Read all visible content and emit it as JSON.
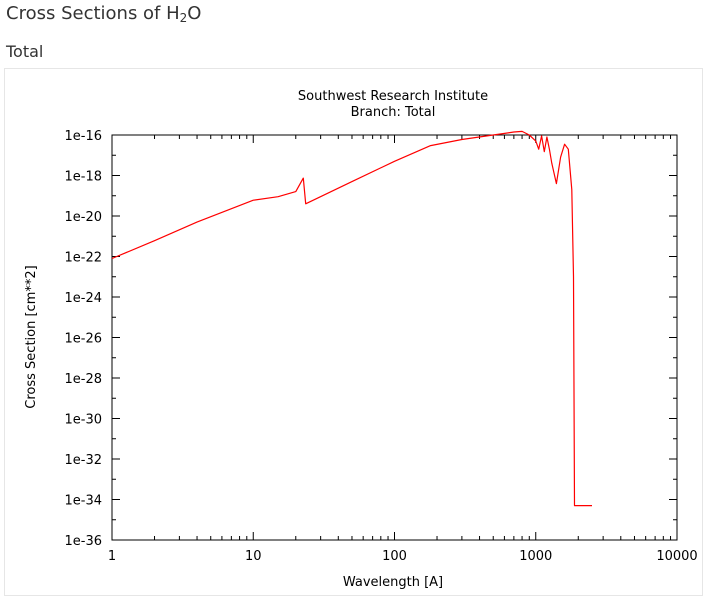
{
  "page": {
    "title_main": "Cross Sections of H",
    "title_sub": "2",
    "title_tail": "O",
    "section": "Total"
  },
  "chart_data": {
    "type": "line",
    "title": "Southwest Research Institute",
    "subtitle": "Branch: Total",
    "xlabel": "Wavelength [A]",
    "ylabel": "Cross Section [cm**2]",
    "xscale": "log",
    "yscale": "log",
    "xlim": [
      1,
      10000
    ],
    "ylim": [
      1e-36,
      1e-16
    ],
    "xticks": [
      1,
      10,
      100,
      1000,
      10000
    ],
    "xtick_labels": [
      "1",
      "10",
      "100",
      "1000",
      "10000"
    ],
    "yticks": [
      1e-16,
      1e-18,
      1e-20,
      1e-22,
      1e-24,
      1e-26,
      1e-28,
      1e-30,
      1e-32,
      1e-34,
      1e-36
    ],
    "ytick_labels": [
      "1e-16",
      "1e-18",
      "1e-20",
      "1e-22",
      "1e-24",
      "1e-26",
      "1e-28",
      "1e-30",
      "1e-32",
      "1e-34",
      "1e-36"
    ],
    "grid": false,
    "series": [
      {
        "color": "#ff0000",
        "x": [
          1,
          2,
          4,
          10,
          15,
          20,
          22.6,
          23.5,
          50,
          100,
          180,
          300,
          500,
          700,
          800,
          900,
          1000,
          1050,
          1100,
          1150,
          1200,
          1250,
          1300,
          1400,
          1500,
          1600,
          1700,
          1800,
          1850,
          1880,
          1890,
          2500
        ],
        "y": [
          8e-23,
          6e-22,
          5e-21,
          6e-20,
          9e-20,
          1.6e-19,
          7.4e-19,
          4e-20,
          5e-19,
          5e-18,
          3e-17,
          6e-17,
          1e-16,
          1.4e-16,
          1.5e-16,
          1e-16,
          5e-17,
          2e-17,
          9e-17,
          1.5e-17,
          8e-17,
          2e-17,
          4e-18,
          4e-19,
          8e-18,
          3.5e-17,
          2e-17,
          2e-19,
          1e-23,
          5e-35,
          5e-35,
          5e-35
        ]
      }
    ]
  }
}
